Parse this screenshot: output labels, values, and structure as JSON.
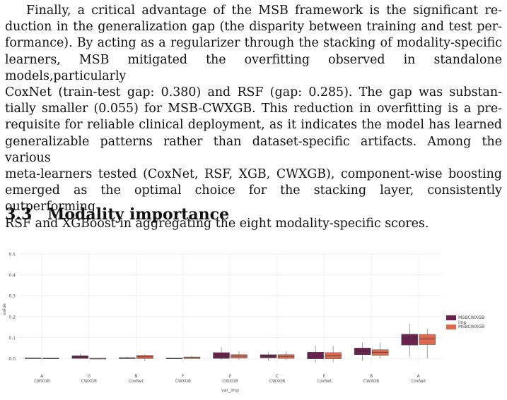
{
  "paragraph_lines": [
    "Finally, a critical advantage of the MSB framework is the significant re-",
    "duction in the generalization gap (the disparity between training and test per-",
    "formance). By acting as a regularizer through the stacking of modality-specific",
    "learners, MSB mitigated the overfitting observed in standalone models,particularly",
    "CoxNet (train-test gap: 0.380) and RSF (gap: 0.285). The gap was substan-",
    "tially smaller (0.055) for MSB-CWXGB. This reduction in overfitting is a pre-",
    "requisite for reliable clinical deployment, as it indicates the model has learned",
    "generalizable patterns rather than dataset-specific artifacts. Among the various",
    "meta-learners tested (CoxNet, RSF, XGB, CWXGB), component-wise boosting",
    "emerged as the optimal choice for the stacking layer, consistently outperforming",
    "RSF and XGBoost in aggregating the eight modality-specific scores."
  ],
  "section": {
    "number": "3.3",
    "title": "Modality importance"
  },
  "chart_data": {
    "type": "boxplot",
    "xlabel": "var_imp",
    "ylabel": "value",
    "ylim": [
      0,
      0.5
    ],
    "yticks": [
      "0.0",
      "0.1",
      "0.2",
      "0.3",
      "0.4",
      "0.5"
    ],
    "grid": true,
    "legend_placement": "right",
    "colors": {
      "series1": "#6b2150",
      "series2": "#dd6a4f"
    },
    "categories": [
      [
        "A",
        "CWXGB"
      ],
      [
        "G",
        "CWXGB"
      ],
      [
        "B",
        "CoxNet"
      ],
      [
        "F",
        "CWXGB"
      ],
      [
        "E",
        "CWXGB"
      ],
      [
        "C",
        "CWXGB"
      ],
      [
        "E",
        "CoxNet"
      ],
      [
        "B",
        "CWXGB"
      ],
      [
        "A",
        "CoxNet"
      ]
    ],
    "series": [
      {
        "name": "MSBCWXGB imp",
        "boxes": [
          {
            "min": -0.002,
            "q1": -0.001,
            "median": 0.001,
            "q3": 0.003,
            "max": 0.004
          },
          {
            "min": -0.002,
            "q1": 0.0,
            "median": 0.006,
            "q3": 0.013,
            "max": 0.023
          },
          {
            "min": -0.003,
            "q1": -0.001,
            "median": 0.001,
            "q3": 0.004,
            "max": 0.008
          },
          {
            "min": -0.003,
            "q1": -0.001,
            "median": 0.0,
            "q3": 0.002,
            "max": 0.003
          },
          {
            "min": -0.008,
            "q1": 0.0,
            "median": 0.012,
            "q3": 0.028,
            "max": 0.055
          },
          {
            "min": -0.012,
            "q1": 0.003,
            "median": 0.012,
            "q3": 0.018,
            "max": 0.03
          },
          {
            "min": -0.02,
            "q1": -0.002,
            "median": 0.011,
            "q3": 0.03,
            "max": 0.062
          },
          {
            "min": -0.012,
            "q1": 0.018,
            "median": 0.034,
            "q3": 0.05,
            "max": 0.076
          },
          {
            "min": 0.008,
            "q1": 0.064,
            "median": 0.095,
            "q3": 0.116,
            "max": 0.166
          }
        ]
      },
      {
        "name": "MSBCWXGB",
        "boxes": [
          {
            "min": -0.002,
            "q1": -0.001,
            "median": 0.0,
            "q3": 0.002,
            "max": 0.004
          },
          {
            "min": -0.002,
            "q1": -0.001,
            "median": 0.0,
            "q3": 0.001,
            "max": 0.002
          },
          {
            "min": -0.013,
            "q1": -0.001,
            "median": 0.008,
            "q3": 0.015,
            "max": 0.02
          },
          {
            "min": -0.003,
            "q1": 0.0,
            "median": 0.003,
            "q3": 0.007,
            "max": 0.012
          },
          {
            "min": -0.006,
            "q1": 0.002,
            "median": 0.011,
            "q3": 0.018,
            "max": 0.035
          },
          {
            "min": -0.008,
            "q1": 0.0,
            "median": 0.01,
            "q3": 0.018,
            "max": 0.035
          },
          {
            "min": -0.018,
            "q1": -0.002,
            "median": 0.012,
            "q3": 0.028,
            "max": 0.06
          },
          {
            "min": 0.0,
            "q1": 0.015,
            "median": 0.03,
            "q3": 0.042,
            "max": 0.074
          },
          {
            "min": 0.002,
            "q1": 0.066,
            "median": 0.094,
            "q3": 0.115,
            "max": 0.142
          }
        ]
      }
    ],
    "legend": [
      {
        "lines": [
          "MSBCWXGB",
          "imp"
        ],
        "color": "#6b2150"
      },
      {
        "lines": [
          "MSBCWXGB"
        ],
        "color": "#dd6a4f"
      }
    ]
  }
}
